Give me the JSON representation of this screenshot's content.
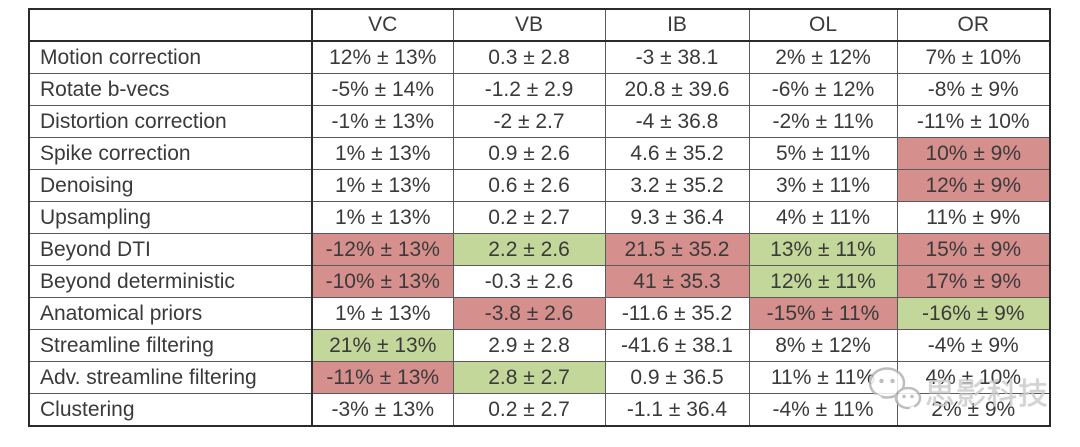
{
  "table": {
    "corner_label": "",
    "columns": [
      "VC",
      "VB",
      "IB",
      "OL",
      "OR"
    ],
    "rows": [
      {
        "label": "Motion correction",
        "cells": [
          {
            "text": "12% ± 13%"
          },
          {
            "text": "0.3 ± 2.8"
          },
          {
            "text": "-3 ± 38.1"
          },
          {
            "text": "2% ± 12%"
          },
          {
            "text": "7% ± 10%"
          }
        ]
      },
      {
        "label": "Rotate b-vecs",
        "cells": [
          {
            "text": "-5% ± 14%"
          },
          {
            "text": "-1.2 ± 2.9"
          },
          {
            "text": "20.8 ± 39.6"
          },
          {
            "text": "-6% ± 12%"
          },
          {
            "text": "-8% ± 9%"
          }
        ]
      },
      {
        "label": "Distortion correction",
        "cells": [
          {
            "text": "-1% ± 13%"
          },
          {
            "text": "-2 ± 2.7"
          },
          {
            "text": "-4 ± 36.8"
          },
          {
            "text": "-2% ± 11%"
          },
          {
            "text": "-11% ± 10%"
          }
        ]
      },
      {
        "label": "Spike correction",
        "cells": [
          {
            "text": "1% ± 13%"
          },
          {
            "text": "0.9 ± 2.6"
          },
          {
            "text": "4.6 ± 35.2"
          },
          {
            "text": "5% ± 11%"
          },
          {
            "text": "10% ± 9%",
            "flag": "red"
          }
        ]
      },
      {
        "label": "Denoising",
        "cells": [
          {
            "text": "1% ± 13%"
          },
          {
            "text": "0.6 ± 2.6"
          },
          {
            "text": "3.2 ± 35.2"
          },
          {
            "text": "3% ± 11%"
          },
          {
            "text": "12% ± 9%",
            "flag": "red"
          }
        ]
      },
      {
        "label": "Upsampling",
        "cells": [
          {
            "text": "1% ± 13%"
          },
          {
            "text": "0.2 ± 2.7"
          },
          {
            "text": "9.3 ± 36.4"
          },
          {
            "text": "4% ± 11%"
          },
          {
            "text": "11% ± 9%"
          }
        ]
      },
      {
        "label": "Beyond DTI",
        "cells": [
          {
            "text": "-12% ± 13%",
            "flag": "red"
          },
          {
            "text": "2.2 ± 2.6",
            "flag": "green"
          },
          {
            "text": "21.5 ± 35.2",
            "flag": "red"
          },
          {
            "text": "13% ± 11%",
            "flag": "green"
          },
          {
            "text": "15% ± 9%",
            "flag": "red"
          }
        ]
      },
      {
        "label": "Beyond deterministic",
        "cells": [
          {
            "text": "-10% ± 13%",
            "flag": "red"
          },
          {
            "text": "-0.3 ± 2.6"
          },
          {
            "text": "41 ± 35.3",
            "flag": "red"
          },
          {
            "text": "12% ± 11%",
            "flag": "green"
          },
          {
            "text": "17% ± 9%",
            "flag": "red"
          }
        ]
      },
      {
        "label": "Anatomical priors",
        "cells": [
          {
            "text": "1% ± 13%"
          },
          {
            "text": "-3.8 ± 2.6",
            "flag": "red"
          },
          {
            "text": "-11.6 ± 35.2"
          },
          {
            "text": "-15% ± 11%",
            "flag": "red"
          },
          {
            "text": "-16% ± 9%",
            "flag": "green"
          }
        ]
      },
      {
        "label": "Streamline filtering",
        "cells": [
          {
            "text": "21% ± 13%",
            "flag": "green"
          },
          {
            "text": "2.9 ± 2.8"
          },
          {
            "text": "-41.6 ± 38.1"
          },
          {
            "text": "8% ± 12%"
          },
          {
            "text": "-4% ± 9%"
          }
        ]
      },
      {
        "label": "Adv. streamline filtering",
        "cells": [
          {
            "text": "-11% ± 13%",
            "flag": "red"
          },
          {
            "text": "2.8 ± 2.7",
            "flag": "green"
          },
          {
            "text": "0.9 ± 36.5"
          },
          {
            "text": "11% ± 11%"
          },
          {
            "text": "4% ± 10%"
          }
        ]
      },
      {
        "label": "Clustering",
        "cells": [
          {
            "text": "-3% ± 13%"
          },
          {
            "text": "0.2 ± 2.7"
          },
          {
            "text": "-1.1 ± 36.4"
          },
          {
            "text": "-4% ± 11%"
          },
          {
            "text": "2% ± 9%"
          }
        ]
      }
    ]
  },
  "colors": {
    "highlight_red": "#d58f8d",
    "highlight_green": "#c4d79b",
    "border_outer": "#2b2b2b",
    "border_inner": "#5a5a5a",
    "text": "#3a3a3a"
  },
  "watermark": {
    "icon": "wechat-icon",
    "text": "思影科技"
  }
}
